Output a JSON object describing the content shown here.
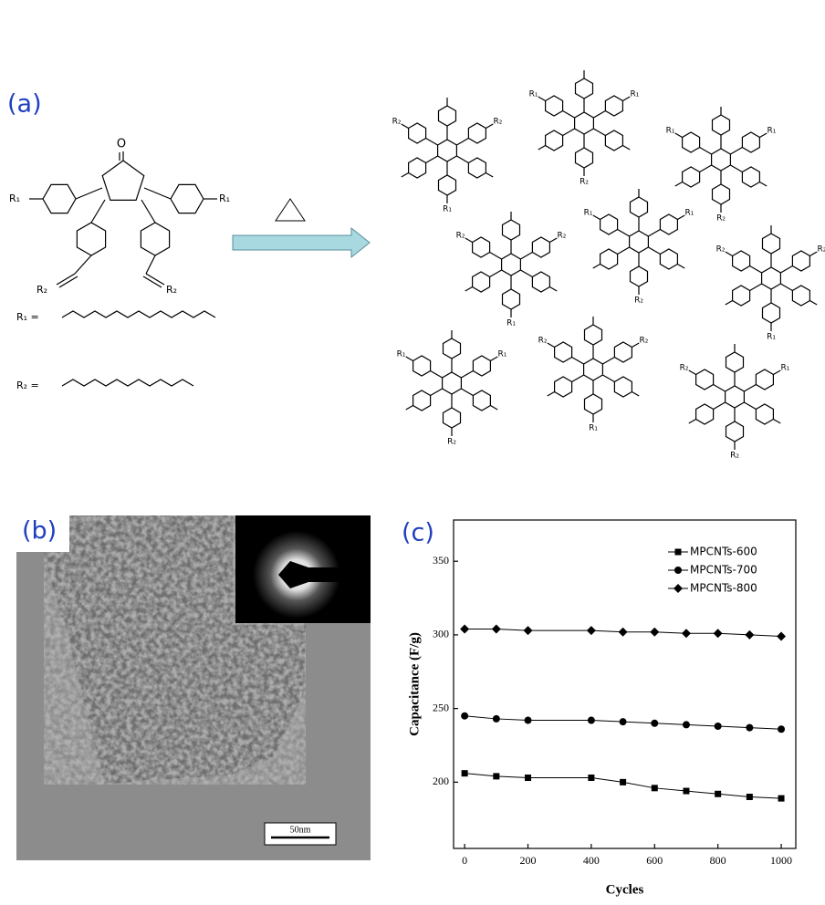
{
  "panel_labels": [
    "(a)",
    "(b)",
    "(c)"
  ],
  "scheme": {
    "monomer_labels": [
      "O",
      "R₁",
      "R₁",
      "R₂",
      "R₂"
    ],
    "r1_def": "R₁ =",
    "r2_def": "R₂ ="
  },
  "network_labels": [
    "R₂",
    "R₁",
    "R₂",
    "R₁",
    "R₂",
    "R₁",
    "R₁",
    "R₂",
    "R₁",
    "R₂",
    "R₁",
    "R₂",
    "R₁",
    "R₂",
    "R₁",
    "R₂",
    "R₁",
    "R₂",
    "R₁",
    "R₂",
    "R₁",
    "R₂",
    "R₁",
    "R₂",
    "R₁",
    "R₂",
    "R₂"
  ],
  "tem": {
    "scale_bar": "50nm"
  },
  "chart_data": {
    "type": "line",
    "xlabel": "Cycles",
    "ylabel": "Capacitance (F/g)",
    "x": [
      0,
      100,
      200,
      400,
      500,
      600,
      700,
      800,
      900,
      1000
    ],
    "series": [
      {
        "name": "MPCNTs-600",
        "color": "#000000",
        "marker": "square",
        "values": [
          206,
          204,
          203,
          203,
          200,
          196,
          194,
          192,
          190,
          189
        ]
      },
      {
        "name": "MPCNTs-700",
        "color": "#000000",
        "marker": "circle",
        "values": [
          245,
          243,
          242,
          242,
          241,
          240,
          239,
          238,
          237,
          236
        ]
      },
      {
        "name": "MPCNTs-800",
        "color": "#000000",
        "marker": "diamond",
        "values": [
          304,
          304,
          303,
          303,
          302,
          302,
          301,
          301,
          300,
          299
        ]
      }
    ],
    "xlim": [
      -35,
      1046
    ],
    "ylim": [
      155,
      378
    ],
    "xticks": [
      0,
      200,
      400,
      600,
      800,
      1000
    ],
    "yticks": [
      200,
      250,
      300,
      350
    ],
    "legend": "upper right"
  }
}
